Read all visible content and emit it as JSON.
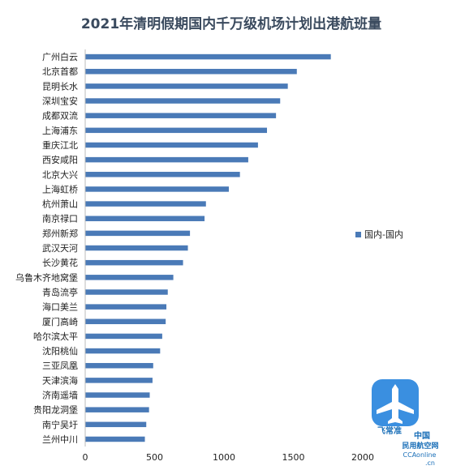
{
  "chart_data": {
    "type": "bar",
    "orientation": "horizontal",
    "title": "2021年清明假期国内千万级机场计划出港航班量",
    "categories": [
      "广州白云",
      "北京首都",
      "昆明长水",
      "深圳宝安",
      "成都双流",
      "上海浦东",
      "重庆江北",
      "西安咸阳",
      "北京大兴",
      "上海虹桥",
      "杭州萧山",
      "南京禄口",
      "郑州新郑",
      "武汉天河",
      "长沙黄花",
      "乌鲁木齐地窝堡",
      "青岛流亭",
      "海口美兰",
      "厦门高崎",
      "哈尔滨太平",
      "沈阳桃仙",
      "三亚凤凰",
      "天津滨海",
      "济南遥墙",
      "贵阳龙洞堡",
      "南宁吴圩",
      "兰州中川"
    ],
    "series": [
      {
        "name": "国内-国内",
        "color": "#4a7ab7",
        "values": [
          1770,
          1525,
          1460,
          1405,
          1375,
          1310,
          1245,
          1175,
          1115,
          1035,
          870,
          860,
          755,
          740,
          705,
          635,
          595,
          585,
          580,
          555,
          540,
          490,
          485,
          465,
          460,
          440,
          430
        ]
      }
    ],
    "xlim": [
      0,
      2000
    ],
    "xticks": [
      "0",
      "500",
      "1000",
      "1500",
      "2000"
    ],
    "grid": false,
    "legend_position": "right"
  },
  "watermark": {
    "app_name": "飞常准",
    "line1": "中国",
    "line2": "民用航空网",
    "line3": "CCAonline",
    "line4": ".cn",
    "icon_color": "#3a8fe0"
  }
}
